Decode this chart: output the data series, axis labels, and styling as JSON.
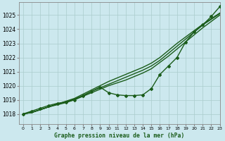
{
  "title": "Graphe pression niveau de la mer (hPa)",
  "bg_color": "#cce8ee",
  "grid_color": "#aacccc",
  "line_color": "#1a5c1a",
  "xlim": [
    -0.5,
    23
  ],
  "ylim": [
    1017.3,
    1025.9
  ],
  "yticks": [
    1018,
    1019,
    1020,
    1021,
    1022,
    1023,
    1024,
    1025
  ],
  "xticks": [
    0,
    1,
    2,
    3,
    4,
    5,
    6,
    7,
    8,
    9,
    10,
    11,
    12,
    13,
    14,
    15,
    16,
    17,
    18,
    19,
    20,
    21,
    22,
    23
  ],
  "series": [
    {
      "name": "line1_smooth",
      "x": [
        0,
        1,
        2,
        3,
        4,
        5,
        6,
        7,
        8,
        9,
        10,
        11,
        12,
        13,
        14,
        15,
        16,
        17,
        18,
        19,
        20,
        21,
        22,
        23
      ],
      "y": [
        1018.0,
        1018.1,
        1018.3,
        1018.5,
        1018.7,
        1018.85,
        1019.05,
        1019.3,
        1019.6,
        1019.85,
        1020.1,
        1020.35,
        1020.6,
        1020.85,
        1021.1,
        1021.4,
        1021.8,
        1022.3,
        1022.8,
        1023.3,
        1023.8,
        1024.3,
        1024.7,
        1025.1
      ],
      "marker": null,
      "lw": 1.0
    },
    {
      "name": "line2_smooth",
      "x": [
        0,
        1,
        2,
        3,
        4,
        5,
        6,
        7,
        8,
        9,
        10,
        11,
        12,
        13,
        14,
        15,
        16,
        17,
        18,
        19,
        20,
        21,
        22,
        23
      ],
      "y": [
        1018.0,
        1018.1,
        1018.3,
        1018.5,
        1018.7,
        1018.9,
        1019.1,
        1019.4,
        1019.7,
        1020.0,
        1020.3,
        1020.55,
        1020.8,
        1021.05,
        1021.3,
        1021.6,
        1022.0,
        1022.5,
        1023.0,
        1023.45,
        1023.9,
        1024.35,
        1024.75,
        1025.15
      ],
      "marker": null,
      "lw": 1.0
    },
    {
      "name": "line3_smooth",
      "x": [
        0,
        1,
        2,
        3,
        4,
        5,
        6,
        7,
        8,
        9,
        10,
        11,
        12,
        13,
        14,
        15,
        16,
        17,
        18,
        19,
        20,
        21,
        22,
        23
      ],
      "y": [
        1018.0,
        1018.1,
        1018.3,
        1018.5,
        1018.65,
        1018.8,
        1019.0,
        1019.25,
        1019.5,
        1019.75,
        1020.0,
        1020.2,
        1020.4,
        1020.65,
        1020.9,
        1021.2,
        1021.65,
        1022.1,
        1022.6,
        1023.1,
        1023.6,
        1024.1,
        1024.55,
        1025.0
      ],
      "marker": null,
      "lw": 1.0
    },
    {
      "name": "marker_line",
      "x": [
        0,
        1,
        2,
        3,
        4,
        5,
        6,
        7,
        8,
        9,
        10,
        11,
        12,
        13,
        14,
        15,
        16,
        17,
        18,
        19,
        20,
        21,
        22,
        23
      ],
      "y": [
        1018.0,
        1018.2,
        1018.4,
        1018.6,
        1018.75,
        1018.85,
        1019.0,
        1019.3,
        1019.6,
        1019.9,
        1019.5,
        1019.35,
        1019.3,
        1019.3,
        1019.35,
        1019.8,
        1020.8,
        1021.4,
        1022.0,
        1023.1,
        1023.8,
        1024.3,
        1024.9,
        1025.6
      ],
      "marker": "D",
      "lw": 1.0
    }
  ]
}
